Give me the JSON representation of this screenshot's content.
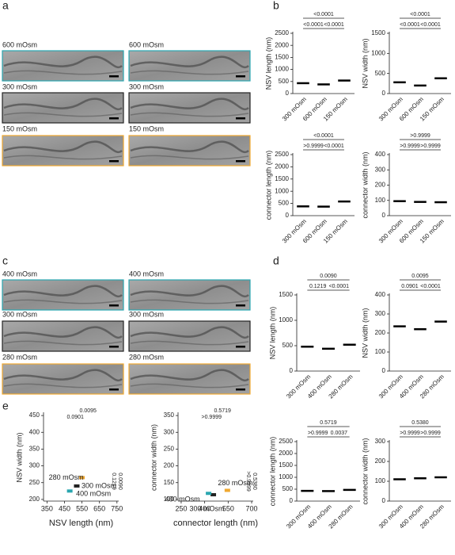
{
  "panel_labels": [
    "a",
    "b",
    "c",
    "d",
    "e"
  ],
  "micrographs": [
    {
      "rows": [
        {
          "label": "600 mOsm",
          "color": "#2aa6b0"
        },
        {
          "label": "300 mOsm",
          "color": "#222222"
        },
        {
          "label": "150 mOsm",
          "color": "#f0a830"
        }
      ]
    },
    {
      "rows": [
        {
          "label": "400 mOsm",
          "color": "#2aa6b0"
        },
        {
          "label": "300 mOsm",
          "color": "#222222"
        },
        {
          "label": "280 mOsm",
          "color": "#f0a830"
        }
      ]
    }
  ],
  "chart_data": [
    {
      "type": "strip",
      "ylabel": "NSV length (nm)",
      "categories": [
        "300 mOsm",
        "600 mOsm",
        "150 mOsm"
      ],
      "values": [
        430,
        380,
        540
      ],
      "color": "#000000",
      "ylim": [
        0,
        2500
      ],
      "yticks": [
        0,
        500,
        1000,
        1500,
        2000,
        2500
      ],
      "p_values": [
        "<0.0001",
        "<0.0001",
        "<0.0001"
      ]
    },
    {
      "type": "strip",
      "ylabel": "NSV width (nm)",
      "categories": [
        "300 mOsm",
        "600 mOsm",
        "150 mOsm"
      ],
      "values": [
        280,
        200,
        380
      ],
      "color": "#000000",
      "ylim": [
        0,
        1500
      ],
      "yticks": [
        0,
        500,
        1000,
        1500
      ],
      "p_values": [
        "<0.0001",
        "<0.0001",
        "<0.0001"
      ]
    },
    {
      "type": "strip",
      "ylabel": "connector length (nm)",
      "categories": [
        "300 mOsm",
        "600 mOsm",
        "150 mOsm"
      ],
      "values": [
        380,
        370,
        580
      ],
      "color": "#000000",
      "ylim": [
        0,
        2500
      ],
      "yticks": [
        0,
        500,
        1000,
        1500,
        2000,
        2500
      ],
      "p_values": [
        ">0.9999",
        "<0.0001",
        "<0.0001"
      ]
    },
    {
      "type": "strip",
      "ylabel": "connector width (nm)",
      "categories": [
        "300 mOsm",
        "600 mOsm",
        "150 mOsm"
      ],
      "values": [
        95,
        90,
        88
      ],
      "color": "#000000",
      "ylim": [
        0,
        400
      ],
      "yticks": [
        0,
        100,
        200,
        300,
        400
      ],
      "p_values": [
        ">0.9999",
        ">0.9999",
        ">0.9999"
      ]
    },
    {
      "type": "strip",
      "ylabel": "NSV length (nm)",
      "categories": [
        "300 mOsm",
        "400 mOsm",
        "280 mOsm"
      ],
      "values": [
        480,
        440,
        520
      ],
      "color": "#000000",
      "ylim": [
        0,
        1500
      ],
      "yticks": [
        0,
        500,
        1000,
        1500
      ],
      "p_values": [
        "0.1219",
        "<0.0001",
        "0.0090"
      ]
    },
    {
      "type": "strip",
      "ylabel": "NSV width (nm)",
      "categories": [
        "300 mOsm",
        "400 mOsm",
        "280 mOsm"
      ],
      "values": [
        235,
        220,
        260
      ],
      "color": "#000000",
      "ylim": [
        0,
        400
      ],
      "yticks": [
        0,
        100,
        200,
        300,
        400
      ],
      "p_values": [
        "0.0901",
        "<0.0001",
        "0.0095"
      ]
    },
    {
      "type": "strip",
      "ylabel": "connector length (nm)",
      "categories": [
        "300 mOsm",
        "400 mOsm",
        "280 mOsm"
      ],
      "values": [
        430,
        420,
        470
      ],
      "color": "#000000",
      "ylim": [
        0,
        2500
      ],
      "yticks": [
        0,
        500,
        1000,
        1500,
        2000,
        2500
      ],
      "p_values": [
        ">0.9999",
        "0.0037",
        "0.5719"
      ]
    },
    {
      "type": "strip",
      "ylabel": "connector width (nm)",
      "categories": [
        "300 mOsm",
        "400 mOsm",
        "280 mOsm"
      ],
      "values": [
        110,
        115,
        120
      ],
      "color": "#000000",
      "ylim": [
        0,
        300
      ],
      "yticks": [
        0,
        100,
        200,
        300
      ],
      "p_values": [
        ">0.9999",
        ">0.9999",
        "0.5380"
      ]
    },
    {
      "type": "scatter",
      "xlabel": "NSV length (nm)",
      "ylabel": "NSV width (nm)",
      "xlim": [
        330,
        760
      ],
      "xticks": [
        350,
        450,
        550,
        650,
        750
      ],
      "ylim": [
        195,
        455
      ],
      "yticks": [
        200,
        250,
        300,
        350,
        400,
        450
      ],
      "series": [
        {
          "name": "280 mOsm",
          "color": "#f0a830",
          "x": [
            550
          ],
          "values": [
            265
          ]
        },
        {
          "name": "300 mOsm",
          "color": "#222222",
          "x": [
            520
          ],
          "values": [
            240
          ]
        },
        {
          "name": "400 mOsm",
          "color": "#2aa6b0",
          "x": [
            480
          ],
          "values": [
            225
          ]
        }
      ],
      "annotations": [
        "0.0095",
        "0.0901",
        "0.0090",
        "0.1219"
      ]
    },
    {
      "type": "scatter",
      "xlabel": "connector length (nm)",
      "ylabel": "connector width (nm)",
      "xlim": [
        230,
        710
      ],
      "xticks": [
        250,
        400,
        550,
        700
      ],
      "ylim": [
        95,
        355
      ],
      "yticks": [
        100,
        150,
        200,
        250,
        300,
        350
      ],
      "series": [
        {
          "name": "280 mOsm",
          "color": "#f0a830",
          "x": [
            545
          ],
          "values": [
            127
          ]
        },
        {
          "name": "300 mOsm",
          "color": "#222222",
          "x": [
            455
          ],
          "values": [
            114
          ]
        },
        {
          "name": "400 mOsm",
          "color": "#2aa6b0",
          "x": [
            425
          ],
          "values": [
            118
          ]
        }
      ],
      "annotations": [
        "0.5719",
        ">0.9999",
        "0.5380",
        ">0.9999"
      ]
    }
  ]
}
